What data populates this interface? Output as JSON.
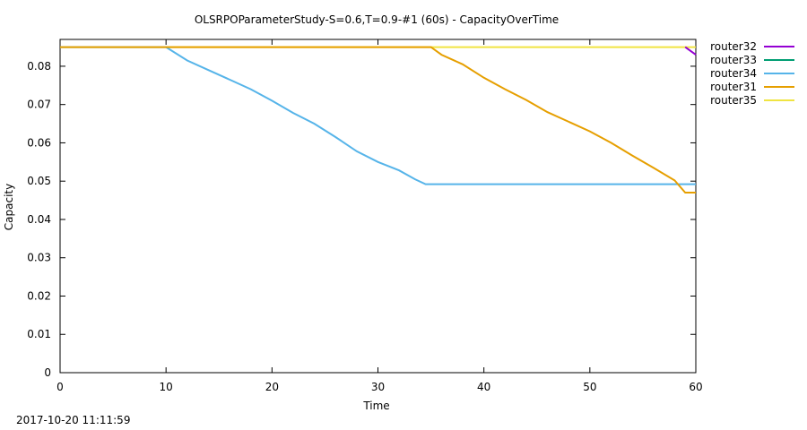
{
  "chart_data": {
    "type": "line",
    "title": "OLSRPOParameterStudy-S=0.6,T=0.9-#1 (60s) - CapacityOverTime",
    "xlabel": "Time",
    "ylabel": "Capacity",
    "xlim": [
      0,
      60
    ],
    "ylim": [
      0,
      0.087
    ],
    "x_ticks": [
      "0",
      "10",
      "20",
      "30",
      "40",
      "50",
      "60"
    ],
    "y_ticks": [
      "0",
      "0.01",
      "0.02",
      "0.03",
      "0.04",
      "0.05",
      "0.06",
      "0.07",
      "0.08"
    ],
    "legend_position": "outside-top-right",
    "grid": false,
    "series": [
      {
        "name": "router32",
        "color": "#9400d3",
        "x": [
          59,
          60
        ],
        "y": [
          0.085,
          0.083
        ]
      },
      {
        "name": "router33",
        "color": "#009e73",
        "x": [],
        "y": []
      },
      {
        "name": "router34",
        "color": "#56b4e9",
        "x": [
          0,
          10,
          12,
          14,
          16,
          18,
          20,
          22,
          24,
          26,
          28,
          30,
          32,
          33.5,
          34.5,
          60
        ],
        "y": [
          0.085,
          0.085,
          0.0815,
          0.079,
          0.0765,
          0.074,
          0.071,
          0.0678,
          0.065,
          0.0615,
          0.0578,
          0.055,
          0.0528,
          0.0505,
          0.0492,
          0.0492
        ]
      },
      {
        "name": "router31",
        "color": "#e69f00",
        "x": [
          0,
          35,
          36,
          38,
          40,
          42,
          44,
          46,
          48,
          50,
          52,
          54,
          56,
          58,
          59,
          60
        ],
        "y": [
          0.085,
          0.085,
          0.083,
          0.0805,
          0.077,
          0.074,
          0.0712,
          0.068,
          0.0655,
          0.063,
          0.06,
          0.0567,
          0.0535,
          0.0502,
          0.047,
          0.047
        ]
      },
      {
        "name": "router35",
        "color": "#f0e442",
        "x": [
          0,
          60
        ],
        "y": [
          0.085,
          0.085
        ]
      }
    ]
  },
  "footer": {
    "timestamp": "2017-10-20 11:11:59"
  }
}
